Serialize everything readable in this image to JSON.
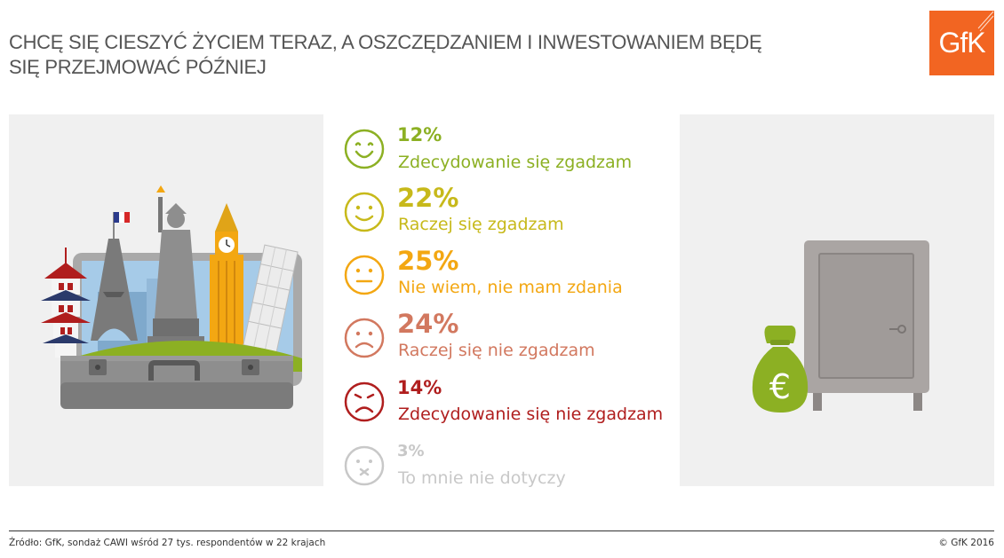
{
  "title": {
    "line1": "CHCĘ SIĘ CIESZYĆ ŻYCIEM TERAZ, A OSZCZĘDZANIEM I INWESTOWANIEM BĘDĘ",
    "line2": "SIĘ PRZEJMOWAĆ PÓŹNIEJ"
  },
  "logo": {
    "text": "GfK",
    "color": "#f26522"
  },
  "chart_data": {
    "type": "table",
    "title": "CHCĘ SIĘ CIESZYĆ ŻYCIEM TERAZ, A OSZCZĘDZANIEM I INWESTOWANIEM BĘDĘ SIĘ PRZEJMOWAĆ PÓŹNIEJ",
    "unit": "%",
    "rows": [
      {
        "pct_label": "12%",
        "value": 12,
        "label": "Zdecydowanie się zgadzam",
        "color": "#8cb023",
        "face": "big-smile-icon"
      },
      {
        "pct_label": "22%",
        "value": 22,
        "label": "Raczej się zgadzam",
        "color": "#c7b91a",
        "face": "smile-icon"
      },
      {
        "pct_label": "25%",
        "value": 25,
        "label": "Nie wiem, nie mam zdania",
        "color": "#f3a712",
        "face": "neutral-face-icon"
      },
      {
        "pct_label": "24%",
        "value": 24,
        "label": "Raczej się nie zgadzam",
        "color": "#d2785f",
        "face": "frown-icon"
      },
      {
        "pct_label": "14%",
        "value": 14,
        "label": "Zdecydowanie się nie zgadzam",
        "color": "#b01e1e",
        "face": "angry-face-icon"
      },
      {
        "pct_label": "3%",
        "value": 3,
        "label": "To mnie nie dotyczy",
        "color": "#c8c8c8",
        "face": "dismissed-face-icon"
      }
    ]
  },
  "illustrations": {
    "left": "suitcase-with-landmarks-icon",
    "right": "safe-with-euro-money-bag-icon",
    "money_symbol": "€"
  },
  "footer": {
    "source": "Źródło: GfK, sondaż CAWI wśród 27 tys. respondentów w 22 krajach",
    "copyright": "© GfK 2016"
  }
}
